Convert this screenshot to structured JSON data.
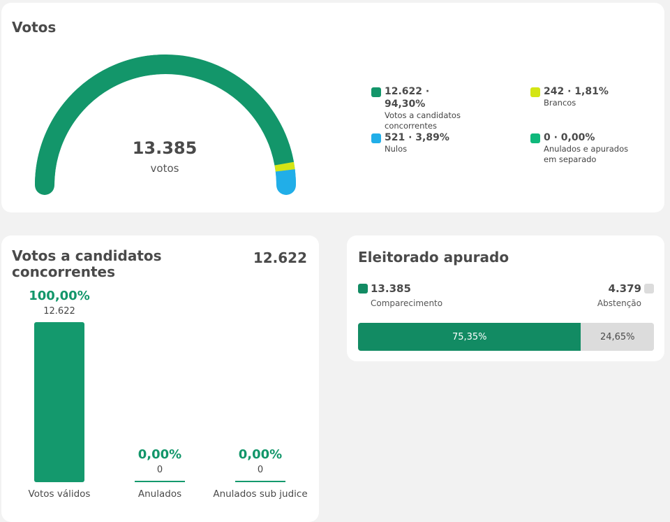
{
  "votos": {
    "title": "Votos",
    "total": "13.385",
    "unit": "votos",
    "legend": [
      {
        "value": "12.622 · 94,30%",
        "label": "Votos a candidatos concorrentes",
        "color": "#13966a",
        "percent": 94.3
      },
      {
        "value": "242 · 1,81%",
        "label": "Brancos",
        "color": "#d4e514",
        "percent": 1.81
      },
      {
        "value": "521 · 3,89%",
        "label": "Nulos",
        "color": "#21aee8",
        "percent": 3.89
      },
      {
        "value": "0 · 0,00%",
        "label": "Anulados e apurados em separado",
        "color": "#0fb87b",
        "percent": 0
      }
    ]
  },
  "concorrentes": {
    "title": "Votos a candidatos concorrentes",
    "total": "12.622",
    "chart_data": {
      "type": "bar",
      "categories": [
        "Votos válidos",
        "Anulados",
        "Anulados sub judice"
      ],
      "values": [
        12622,
        0,
        0
      ],
      "value_labels": [
        "12.622",
        "0",
        "0"
      ],
      "percent_labels": [
        "100,00%",
        "0,00%",
        "0,00%"
      ],
      "percents": [
        100,
        0,
        0
      ]
    }
  },
  "eleitorado": {
    "title": "Eleitorado apurado",
    "comparecimento": {
      "value": "13.385",
      "label": "Comparecimento",
      "percent_label": "75,35%",
      "percent": 75.35,
      "color": "#128b63"
    },
    "abstencao": {
      "value": "4.379",
      "label": "Abstenção",
      "percent_label": "24,65%",
      "percent": 24.65,
      "color": "#dcdcdc"
    }
  }
}
